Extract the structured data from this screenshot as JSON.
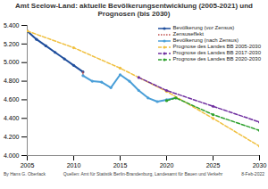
{
  "chart_data": {
    "type": "line",
    "title": "Amt Seelow-Land: aktuelle Bevölkerungsentwicklung (2005-2021) und Prognosen (bis 2030)",
    "author": "By Hans G. Oberlack",
    "source": "Quellen: Amt für Statistik Berlin-Brandenburg, Landesamt für Bauen und Verkehr",
    "date": "8-Feb-2022",
    "xlim": [
      2005,
      2030
    ],
    "xticks": [
      2005,
      2010,
      2015,
      2020,
      2025,
      2030
    ],
    "ylim": [
      4000,
      5400
    ],
    "yticks": [
      {
        "value": 4000,
        "label": "4.000"
      },
      {
        "value": 4200,
        "label": "4.200"
      },
      {
        "value": 4400,
        "label": "4.400"
      },
      {
        "value": 4600,
        "label": "4.600"
      },
      {
        "value": 4800,
        "label": "4.800"
      },
      {
        "value": 5000,
        "label": "5.000"
      },
      {
        "value": 5200,
        "label": "5.200"
      },
      {
        "value": 5400,
        "label": "5.400"
      }
    ],
    "grid": false,
    "legend": "top-right",
    "series": [
      {
        "name": "Bevölkerung (vor Zensus)",
        "color": "#1f4e9c",
        "line_style": "solid",
        "marker": "dot",
        "x": [
          2005,
          2006,
          2007,
          2008,
          2009,
          2010,
          2011
        ],
        "values": [
          5340,
          5250,
          5180,
          5110,
          5040,
          4970,
          4900
        ]
      },
      {
        "name": "Zensuseffekt",
        "color": "#c0504d",
        "line_style": "dotted",
        "marker": "none",
        "x": [
          2011,
          2011
        ],
        "values": [
          4900,
          4860
        ]
      },
      {
        "name": "Bevölkerung (nach Zensus)",
        "color": "#4a9fd8",
        "line_style": "solid",
        "marker": "dot",
        "x": [
          2011,
          2012,
          2013,
          2014,
          2015,
          2016,
          2017,
          2018,
          2019,
          2020,
          2021
        ],
        "values": [
          4860,
          4800,
          4790,
          4730,
          4870,
          4800,
          4700,
          4620,
          4580,
          4600,
          4620
        ]
      },
      {
        "name": "Prognose des Landes BB 2005-2030",
        "color": "#f0c040",
        "line_style": "dashed",
        "marker": "dot",
        "x": [
          2005,
          2010,
          2015,
          2020,
          2025,
          2030
        ],
        "values": [
          5340,
          5160,
          4940,
          4690,
          4400,
          4100
        ]
      },
      {
        "name": "Prognose des Landes BB 2017-2030",
        "color": "#7030a0",
        "line_style": "dashed",
        "marker": "dot",
        "x": [
          2017,
          2020,
          2025,
          2030
        ],
        "values": [
          4840,
          4700,
          4530,
          4360
        ]
      },
      {
        "name": "Prognose des Landes BB 2020-2030",
        "color": "#2ca02c",
        "line_style": "dashed",
        "marker": "dot",
        "x": [
          2020,
          2021,
          2025,
          2030
        ],
        "values": [
          4590,
          4620,
          4440,
          4270
        ]
      }
    ]
  }
}
